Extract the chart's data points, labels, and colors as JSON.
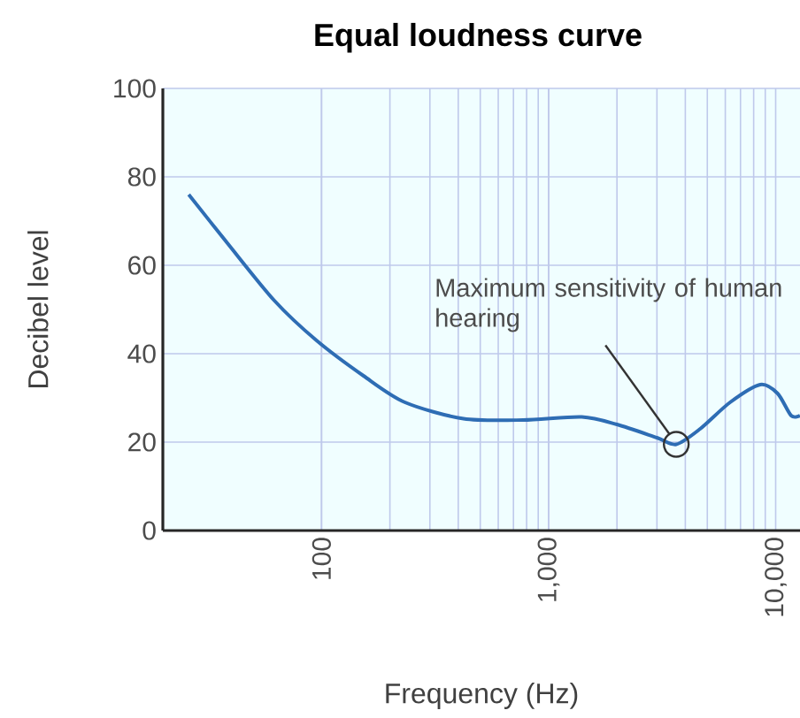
{
  "chart_data": {
    "type": "line",
    "title": "Equal loudness curve",
    "xlabel": "Frequency (Hz)",
    "ylabel": "Decibel level",
    "log": "x",
    "x": [
      26,
      38.5,
      62,
      95,
      153,
      233,
      422,
      773,
      1400,
      2000,
      3000,
      3650,
      4650,
      6300,
      8550,
      10200,
      11700,
      12800
    ],
    "values": [
      76,
      65,
      52,
      43,
      35,
      29,
      25.3,
      25,
      25.7,
      24,
      21,
      19.5,
      23,
      29,
      33,
      31,
      26,
      26
    ],
    "color": "#2e6db4",
    "xlim": [
      20,
      12800
    ],
    "xticks": [
      100,
      {
        "value": 1000,
        "label": "1,000"
      },
      {
        "value": 10000,
        "label": "10,000"
      }
    ],
    "ylim": [
      0,
      100
    ],
    "yticks": [
      0,
      20,
      40,
      60,
      80,
      100
    ],
    "grid": true,
    "annotations": [
      {
        "text": "Maximum sensitivity of human hearing",
        "x": 3650,
        "y": 19.5
      }
    ]
  }
}
